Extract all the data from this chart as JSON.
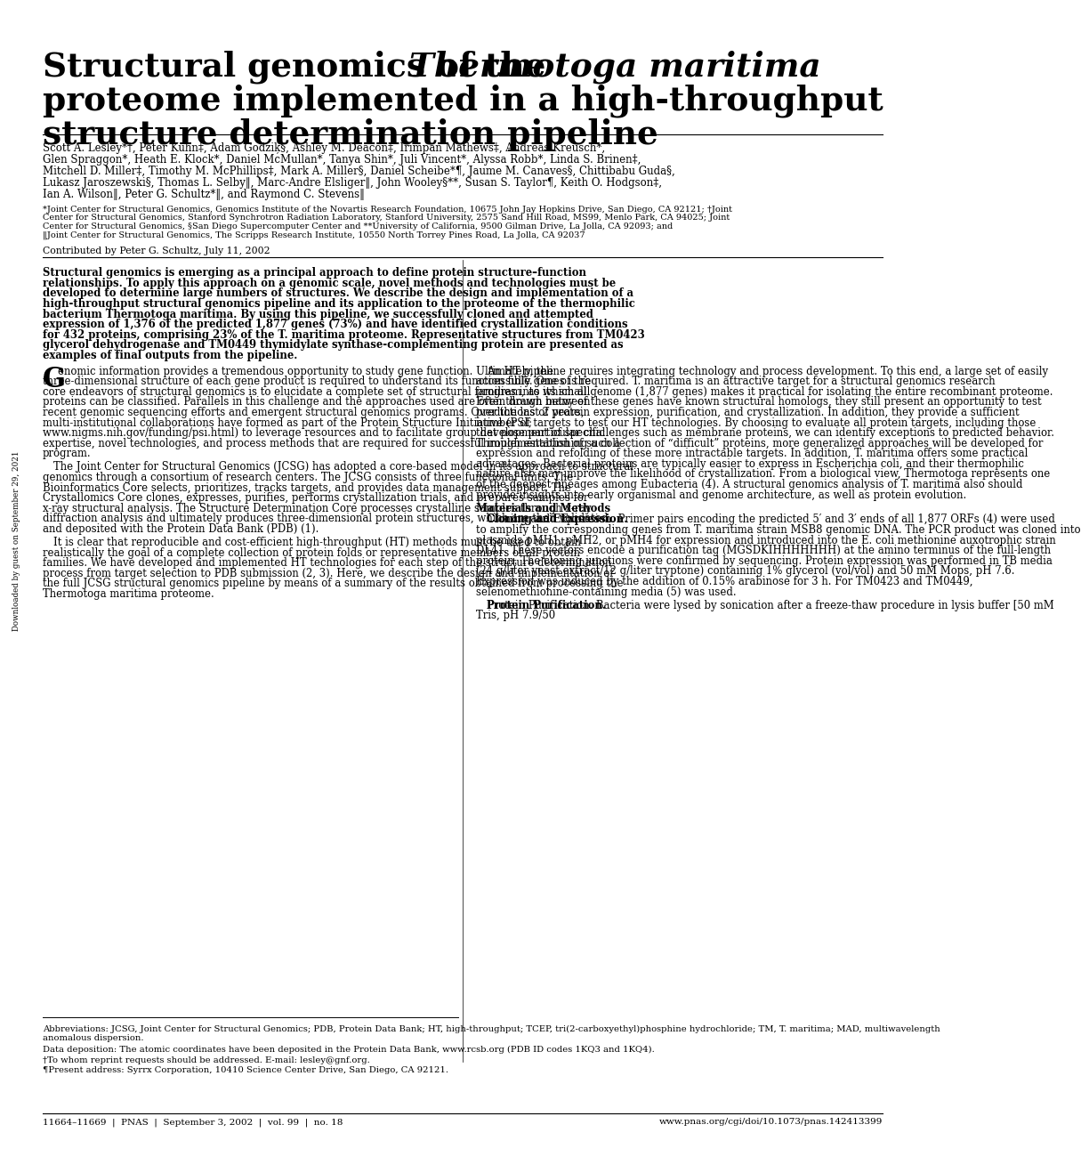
{
  "background_color": "#ffffff",
  "title_normal": "Structural genomics of the ",
  "title_italic": "Thermotoga maritima",
  "title_line2": "proteome implemented in a high-throughput",
  "title_line3": "structure determination pipeline",
  "author_line1": "Scott A. Lesley*†, Peter Kuhn‡, Adam Godziķ§, Ashley M. Deacon‡, Irimpan Mathews‡, Andreas Kreusch*,",
  "author_line2": "Glen Spraggon*, Heath E. Klock*, Daniel McMullan*, Tanya Shin*, Juli Vincent*, Alyssa Robb*, Linda S. Brinen‡,",
  "author_line3": "Mitchell D. Miller‡, Timothy M. McPhillips‡, Mark A. Miller§, Daniel Scheibe*¶, Jaume M. Canaves§, Chittibabu Guda§,",
  "author_line4": "Lukasz Jaroszewski§, Thomas L. Selby‖, Marc-Andre Elsliger‖, John Wooley§**, Susan S. Taylor¶, Keith O. Hodgson‡,",
  "author_line5": "Ian A. Wilson‖, Peter G. Schultz*‖, and Raymond C. Stevens‖",
  "aff_line1": "*Joint Center for Structural Genomics, Genomics Institute of the Novartis Research Foundation, 10675 John Jay Hopkins Drive, San Diego, CA 92121; †Joint",
  "aff_line2": "Center for Structural Genomics, Stanford Synchrotron Radiation Laboratory, Stanford University, 2575 Sand Hill Road, MS99, Menlo Park, CA 94025; Joint",
  "aff_line3": "Center for Structural Genomics, §San Diego Supercomputer Center and **University of California, 9500 Gilman Drive, La Jolla, CA 92093; and",
  "aff_line4": "‖Joint Center for Structural Genomics, The Scripps Research Institute, 10550 North Torrey Pines Road, La Jolla, CA 92037",
  "contributed": "Contributed by Peter G. Schultz, July 11, 2002",
  "abstract": "Structural genomics is emerging as a principal approach to define protein structure–function relationships. To apply this approach on a genomic scale, novel methods and technologies must be developed to determine large numbers of structures. We describe the design and implementation of a high-throughput structural genomics pipeline and its application to the proteome of the thermophilic bacterium Thermotoga maritima. By using this pipeline, we successfully cloned and attempted expression of 1,376 of the predicted 1,877 genes (73%) and have identified crystallization conditions for 432 proteins, comprising 23% of the T. maritima proteome. Representative structures from TM0423 glycerol dehydrogenase and TM0449 thymidylate synthase-complementing protein are presented as examples of final outputs from the pipeline.",
  "left_col": "enomic information provides a tremendous opportunity to study gene function. Ultimately, the three-dimensional structure of each gene product is required to understand its function fully. One of the core endeavors of structural genomics is to elucidate a complete set of structural families into which all proteins can be classified. Parallels in this challenge and the approaches used are often drawn between recent genomic sequencing efforts and emergent structural genomics programs. Over the last 2 years, multi-institutional collaborations have formed as part of the Protein Structure Initiative (PSI; www.nigms.nih.gov/funding/psi.html) to leverage resources and to facilitate group development of specific expertise, novel technologies, and process methods that are required for successful implementation of such a program.\n\nThe Joint Center for Structural Genomics (JCSG) has adopted a core-based model in its approach to structural genomics through a consortium of research centers. The JCSG consists of three functional units. The Bioinformatics Core selects, prioritizes, tracks targets, and provides data management support. The Crystallomics Core clones, expresses, purifies, performs crystallization trials, and prepares samples for x-ray structural analysis. The Structure Determination Core processes crystalline samples through x-ray diffraction analysis and ultimately produces three-dimensional protein structures, which are then validated and deposited with the Protein Data Bank (PDB) (1).\n\nIt is clear that reproducible and cost-efficient high-throughput (HT) methods must be used to obtain realistically the goal of a complete collection of protein folds or representative members of all protein families. We have developed and implemented HT technologies for each step of the structure determination process from target selection to PDB submission (2, 3). Here, we describe the design and implementation of the full JCSG structural genomics pipeline by means of a summary of the results obtained from processing the Thermotoga maritima proteome.",
  "right_col": "An HT pipeline requires integrating technology and process development. To this end, a large set of easily accessible genes is required. T. maritima is an attractive target for a structural genomics research program, as its small genome (1,877 genes) makes it practical for isolating the entire recombinant proteome. Even though many of these genes have known structural homologs, they still present an opportunity to test predictions of protein expression, purification, and crystallization. In addition, they provide a sufficient number of targets to test our HT technologies. By choosing to evaluate all protein targets, including those that pose particular challenges such as membrane proteins, we can identify exceptions to predicted behavior. Through establishing a collection of “difficult” proteins, more generalized approaches will be developed for expression and refolding of these more intractable targets. In addition, T. maritima offers some practical advantages. Bacterial proteins are typically easier to express in Escherichia coli, and their thermophilic nature also may improve the likelihood of crystallization. From a biological view, Thermotoga represents one of the deepest lineages among Eubacteria (4). A structural genomics analysis of T. maritima also should provide insights into early organismal and genome architecture, as well as protein evolution.\n\nMaterials and Methods\n\nCloning and Expression. Primer pairs encoding the predicted 5′ and 3′ ends of all 1,877 ORFs (4) were used to amplify the corresponding genes from T. maritima strain MSB8 genomic DNA. The PCR product was cloned into plasmids pMH1, pMH2, or pMH4 for expression and introduced into the E. coli methionine auxotrophic strain DL41. These vectors encode a purification tag (MGSDKIHHHHHHH) at the amino terminus of the full-length protein. The cloning junctions were confirmed by sequencing. Protein expression was performed in TB media (24 g/liter yeast extract/12 g/liter tryptone) containing 1% glycerol (vol/vol) and 50 mM Mops, pH 7.6. Expression was induced by the addition of 0.15% arabinose for 3 h. For TM0423 and TM0449, selenomethionine-containing media (5) was used.\n\nProtein Purification. Bacteria were lysed by sonication after a freeze-thaw procedure in lysis buffer [50 mM Tris, pH 7.9/50",
  "abbrev": "Abbreviations: JCSG, Joint Center for Structural Genomics; PDB, Protein Data Bank; HT, high-throughput; TCEP, tri(2-carboxyethyl)phosphine hydrochloride; TM, T. maritima; MAD, multiwavelength anomalous dispersion.",
  "data_dep": "Data deposition: The atomic coordinates have been deposited in the Protein Data Bank, www.rcsb.org (PDB ID codes 1KQ3 and 1KQ4).",
  "reprint": "†To whom reprint requests should be addressed. E-mail: lesley@gnf.org.",
  "present": "¶Present address: Syrrx Corporation, 10410 Science Center Drive, San Diego, CA 92121.",
  "footer_left": "11664–11669  |  PNAS  |  September 3, 2002  |  vol. 99  |  no. 18",
  "footer_right": "www.pnas.org/cgi/doi/10.1073/pnas.142413399",
  "sidebar": "Downloaded by guest on September 29, 2021",
  "title_fontsize": 27,
  "author_fontsize": 8.5,
  "aff_fontsize": 7.0,
  "contrib_fontsize": 7.8,
  "body_fontsize": 8.4,
  "small_fontsize": 7.2,
  "footer_fontsize": 7.5
}
